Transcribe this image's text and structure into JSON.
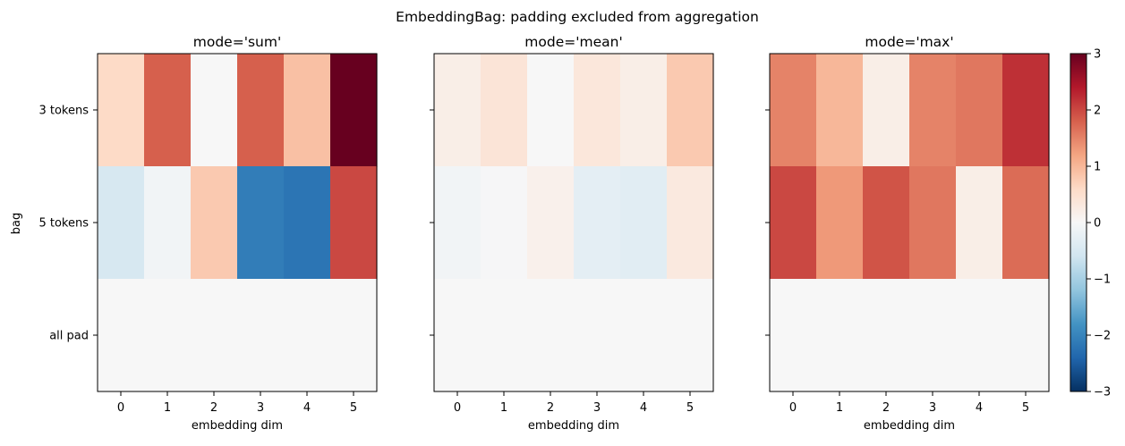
{
  "chart_data": {
    "type": "heatmap",
    "suptitle": "EmbeddingBag: padding excluded from aggregation",
    "ylabel": "bag",
    "rows": [
      "3 tokens",
      "5 tokens",
      "all pad"
    ],
    "x": [
      "0",
      "1",
      "2",
      "3",
      "4",
      "5"
    ],
    "xlabel": "embedding dim",
    "colormap": "RdBu_r",
    "vmin": -3,
    "vmax": 3,
    "colorbar_ticks": [
      "−3",
      "−2",
      "−1",
      "0",
      "1",
      "2",
      "3"
    ],
    "panels": [
      {
        "title": "mode='sum'",
        "values": [
          [
            0.6,
            1.8,
            0.0,
            1.8,
            0.9,
            3.0
          ],
          [
            -0.5,
            -0.1,
            0.8,
            -2.1,
            -2.2,
            2.0
          ],
          [
            0.0,
            0.0,
            0.0,
            0.0,
            0.0,
            0.0
          ]
        ]
      },
      {
        "title": "mode='mean'",
        "values": [
          [
            0.2,
            0.4,
            0.0,
            0.35,
            0.2,
            0.8
          ],
          [
            -0.1,
            -0.02,
            0.15,
            -0.3,
            -0.35,
            0.3
          ],
          [
            0.0,
            0.0,
            0.0,
            0.0,
            0.0,
            0.0
          ]
        ]
      },
      {
        "title": "mode='max'",
        "values": [
          [
            1.5,
            1.0,
            0.2,
            1.5,
            1.6,
            2.2
          ],
          [
            2.0,
            1.3,
            1.9,
            1.6,
            0.2,
            1.7
          ],
          [
            0.0,
            0.0,
            0.0,
            0.0,
            0.0,
            0.0
          ]
        ]
      }
    ]
  }
}
